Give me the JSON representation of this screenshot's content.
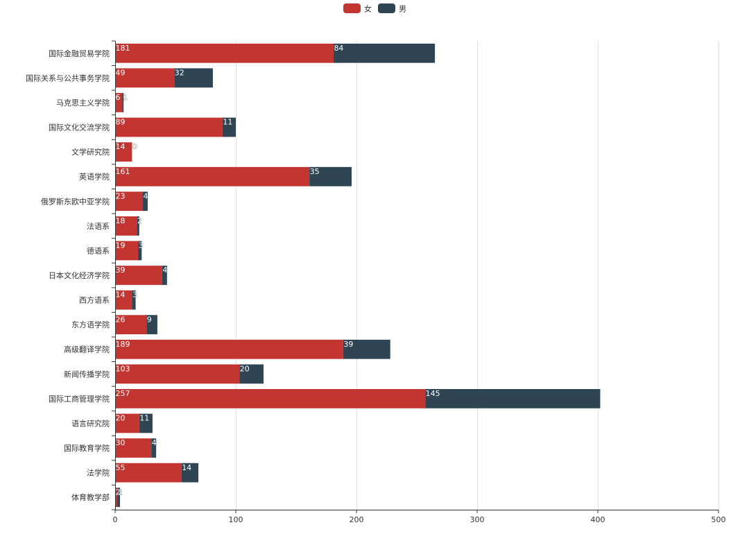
{
  "chart_data": {
    "type": "bar",
    "orientation": "horizontal",
    "stacked": true,
    "title": "",
    "xlabel": "",
    "ylabel": "",
    "xlim": [
      0,
      500
    ],
    "x_ticks": [
      0,
      100,
      200,
      300,
      400,
      500
    ],
    "grid": "vertical",
    "legend_position": "top-center",
    "categories": [
      "国际金融贸易学院",
      "国际关系与公共事务学院",
      "马克思主义学院",
      "国际文化交流学院",
      "文学研究院",
      "英语学院",
      "俄罗斯东欧中亚学院",
      "法语系",
      "德语系",
      "日本文化经济学院",
      "西方语系",
      "东方语学院",
      "高级翻译学院",
      "新闻传播学院",
      "国际工商管理学院",
      "语言研究院",
      "国际教育学院",
      "法学院",
      "体育教学部"
    ],
    "series": [
      {
        "name": "女",
        "color": "#c23531",
        "values": [
          181,
          49,
          6,
          89,
          14,
          161,
          23,
          18,
          19,
          39,
          14,
          26,
          189,
          103,
          257,
          20,
          30,
          55,
          2
        ]
      },
      {
        "name": "男",
        "color": "#2f4554",
        "values": [
          84,
          32,
          1,
          11,
          0,
          35,
          4,
          2,
          3,
          4,
          3,
          9,
          39,
          20,
          145,
          11,
          4,
          14,
          2
        ]
      }
    ]
  }
}
